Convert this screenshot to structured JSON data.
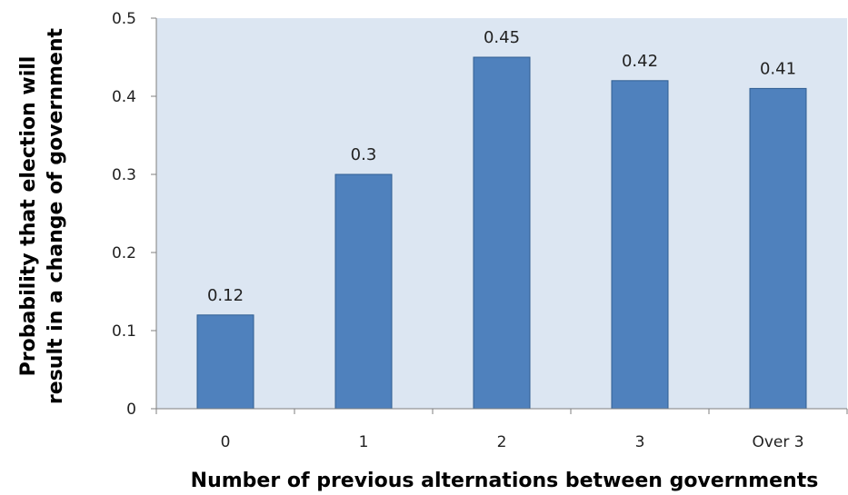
{
  "chart_data": {
    "type": "bar",
    "title": "",
    "categories": [
      "0",
      "1",
      "2",
      "3",
      "Over 3"
    ],
    "values": [
      0.12,
      0.3,
      0.45,
      0.42,
      0.41
    ],
    "data_labels": [
      "0.12",
      "0.3",
      "0.45",
      "0.42",
      "0.41"
    ],
    "xlabel": "Number of previous alternations between governments",
    "ylabel_lines": [
      "Probability that election will",
      "result in a change of government"
    ],
    "ylim": [
      0,
      0.5
    ],
    "yticks": [
      0,
      0.1,
      0.2,
      0.3,
      0.4,
      0.5
    ],
    "ytick_labels": [
      "0",
      "0.1",
      "0.2",
      "0.3",
      "0.4",
      "0.5"
    ],
    "grid": false,
    "legend": "none",
    "colors": {
      "bar": "#4f81bd",
      "bar_edge": "#2f5d91",
      "plot_area": "#dce6f2",
      "axis": "#7f7f7f"
    }
  }
}
